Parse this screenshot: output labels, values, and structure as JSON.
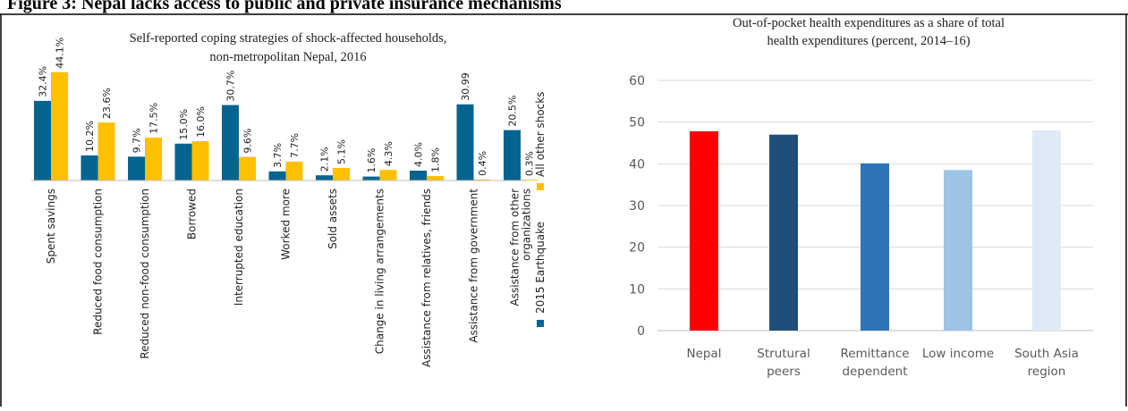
{
  "figure_caption": "Figure 3: Nepal lacks access to public and private insurance mechanisms",
  "colors": {
    "earthquake": "#03648f",
    "other_shocks": "#ffc000",
    "nepal": "#ff0000",
    "structural_peers": "#1f4e79",
    "remittance_dependent": "#2e75b6",
    "low_income": "#9dc3e6",
    "south_asia": "#deebf7"
  },
  "chart_data": [
    {
      "type": "bar",
      "title": "Self-reported coping strategies of shock-affected households, non-metropolitan Nepal, 2016",
      "title_lines": [
        "Self-reported coping strategies of shock-affected households,",
        "non-metropolitan Nepal, 2016"
      ],
      "categories": [
        "Spent savings",
        "Reduced food consumption",
        "Reduced non-food consumption",
        "Borrowed",
        "Interrupted education",
        "Worked more",
        "Sold assets",
        "Change in living arrangements",
        "Assistance from relatives, friends",
        "Assistance from government",
        "Assistance from other organizations"
      ],
      "category_lines": [
        [
          "Spent savings"
        ],
        [
          "Reduced food consumption"
        ],
        [
          "Reduced non-food consumption"
        ],
        [
          "Borrowed"
        ],
        [
          "Interrupted education"
        ],
        [
          "Worked more"
        ],
        [
          "Sold assets"
        ],
        [
          "Change in living arrangements"
        ],
        [
          "Assistance from relatives, friends"
        ],
        [
          "Assistance from government"
        ],
        [
          "Assistance from other",
          "organizations"
        ]
      ],
      "series": [
        {
          "name": "2015 Earthquake",
          "values": [
            32.4,
            10.2,
            9.7,
            15.0,
            30.7,
            3.7,
            2.1,
            1.6,
            4.0,
            30.99,
            20.5
          ],
          "labels": [
            "32.4%",
            "10.2%",
            "9.7%",
            "15.0%",
            "30.7%",
            "3.7%",
            "2.1%",
            "1.6%",
            "4.0%",
            "30.99",
            "20.5%"
          ]
        },
        {
          "name": "All other shocks",
          "values": [
            44.1,
            23.6,
            17.5,
            16.0,
            9.6,
            7.7,
            5.1,
            4.3,
            1.8,
            0.4,
            0.3
          ],
          "labels": [
            "44.1%",
            "23.6%",
            "17.5%",
            "16.0%",
            "9.6%",
            "7.7%",
            "5.1%",
            "4.3%",
            "1.8%",
            "0.4%",
            "0.3%"
          ]
        }
      ],
      "legend": "right"
    },
    {
      "type": "bar",
      "title": "Out-of-pocket health expenditures as a share of total health expenditures (percent, 2014–16)",
      "title_lines": [
        "Out-of-pocket health expenditures as a share of total",
        "health expenditures (percent, 2014–16)"
      ],
      "categories": [
        "Nepal",
        "Strutural peers",
        "Remittance dependent",
        "Low income",
        "South Asia region"
      ],
      "category_lines": [
        [
          "Nepal"
        ],
        [
          "Strutural",
          "peers"
        ],
        [
          "Remittance",
          "dependent"
        ],
        [
          "Low income"
        ],
        [
          "South Asia",
          "region"
        ]
      ],
      "values": [
        47.8,
        47.0,
        40.1,
        38.5,
        48.0
      ],
      "ylim": [
        0,
        60
      ],
      "yticks": [
        "0",
        "10",
        "20",
        "30",
        "40",
        "50",
        "60"
      ],
      "grid": true
    }
  ]
}
